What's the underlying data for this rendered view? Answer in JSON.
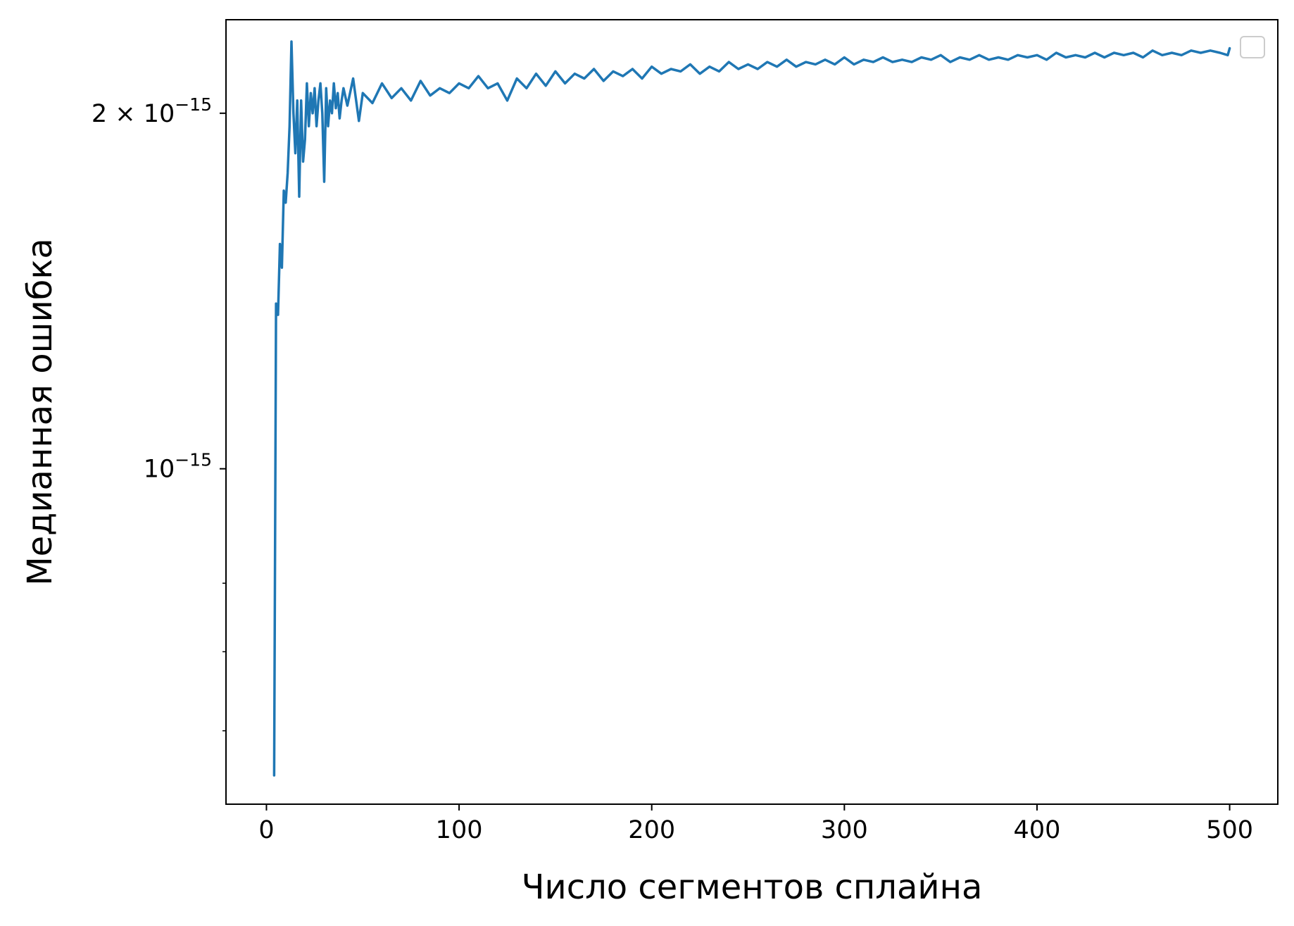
{
  "chart_data": {
    "type": "line",
    "title": "",
    "xlabel": "Число сегментов сплайна",
    "ylabel": "Медианная ошибка",
    "xlim": [
      -21,
      525
    ],
    "ylim": [
      5.2e-16,
      2.4e-15
    ],
    "yscale": "log",
    "grid": false,
    "legend": {
      "visible": true,
      "placement": "upper right",
      "entries": []
    },
    "x_ticks": [
      {
        "value": 0,
        "label": "0"
      },
      {
        "value": 100,
        "label": "100"
      },
      {
        "value": 200,
        "label": "200"
      },
      {
        "value": 300,
        "label": "300"
      },
      {
        "value": 400,
        "label": "400"
      },
      {
        "value": 500,
        "label": "500"
      }
    ],
    "y_major_ticks": [
      {
        "value": 1e-15,
        "base": "10",
        "sup": "−15"
      },
      {
        "value": 2e-15,
        "base": "2 × 10",
        "sup": "−15"
      }
    ],
    "y_minor_ticks": [
      6e-16,
      7e-16,
      8e-16
    ],
    "line_color": "#1f77b4",
    "series": [
      {
        "x": [
          4,
          5,
          6,
          7,
          8,
          9,
          10,
          11,
          12,
          13,
          14,
          15,
          16,
          17,
          18,
          19,
          20,
          21,
          22,
          23,
          24,
          25,
          26,
          27,
          28,
          29,
          30,
          31,
          32,
          33,
          34,
          35,
          36,
          37,
          38,
          39,
          40,
          42,
          45,
          48,
          50,
          55,
          60,
          65,
          70,
          75,
          80,
          85,
          90,
          95,
          100,
          105,
          110,
          115,
          120,
          125,
          130,
          135,
          140,
          145,
          150,
          155,
          160,
          165,
          170,
          175,
          180,
          185,
          190,
          195,
          200,
          205,
          210,
          215,
          220,
          225,
          230,
          235,
          240,
          245,
          250,
          255,
          260,
          265,
          270,
          275,
          280,
          285,
          290,
          295,
          300,
          305,
          310,
          315,
          320,
          325,
          330,
          335,
          340,
          345,
          350,
          355,
          360,
          365,
          370,
          375,
          380,
          385,
          390,
          395,
          400,
          405,
          410,
          415,
          420,
          425,
          430,
          435,
          440,
          445,
          450,
          455,
          460,
          465,
          470,
          475,
          480,
          485,
          490,
          495,
          499,
          500
        ],
        "values": [
          5.5e-16,
          1.38e-15,
          1.35e-15,
          1.55e-15,
          1.48e-15,
          1.72e-15,
          1.68e-15,
          1.78e-15,
          1.95e-15,
          2.3e-15,
          2e-15,
          1.85e-15,
          2.05e-15,
          1.7e-15,
          2.05e-15,
          1.82e-15,
          1.9e-15,
          2.12e-15,
          1.95e-15,
          2.08e-15,
          2e-15,
          2.1e-15,
          1.95e-15,
          2.05e-15,
          2.12e-15,
          2e-15,
          1.75e-15,
          2.1e-15,
          1.95e-15,
          2.05e-15,
          2e-15,
          2.12e-15,
          2.02e-15,
          2.08e-15,
          1.98e-15,
          2.05e-15,
          2.1e-15,
          2.03e-15,
          2.14e-15,
          1.97e-15,
          2.08e-15,
          2.04e-15,
          2.12e-15,
          2.06e-15,
          2.1e-15,
          2.05e-15,
          2.13e-15,
          2.07e-15,
          2.1e-15,
          2.08e-15,
          2.12e-15,
          2.1e-15,
          2.15e-15,
          2.1e-15,
          2.12e-15,
          2.05e-15,
          2.14e-15,
          2.1e-15,
          2.16e-15,
          2.11e-15,
          2.17e-15,
          2.12e-15,
          2.16e-15,
          2.14e-15,
          2.18e-15,
          2.13e-15,
          2.17e-15,
          2.15e-15,
          2.18e-15,
          2.14e-15,
          2.19e-15,
          2.16e-15,
          2.18e-15,
          2.17e-15,
          2.2e-15,
          2.16e-15,
          2.19e-15,
          2.17e-15,
          2.21e-15,
          2.18e-15,
          2.2e-15,
          2.18e-15,
          2.21e-15,
          2.19e-15,
          2.22e-15,
          2.19e-15,
          2.21e-15,
          2.2e-15,
          2.22e-15,
          2.2e-15,
          2.23e-15,
          2.2e-15,
          2.22e-15,
          2.21e-15,
          2.23e-15,
          2.21e-15,
          2.22e-15,
          2.21e-15,
          2.23e-15,
          2.22e-15,
          2.24e-15,
          2.21e-15,
          2.23e-15,
          2.22e-15,
          2.24e-15,
          2.22e-15,
          2.23e-15,
          2.22e-15,
          2.24e-15,
          2.23e-15,
          2.24e-15,
          2.22e-15,
          2.25e-15,
          2.23e-15,
          2.24e-15,
          2.23e-15,
          2.25e-15,
          2.23e-15,
          2.25e-15,
          2.24e-15,
          2.25e-15,
          2.23e-15,
          2.26e-15,
          2.24e-15,
          2.25e-15,
          2.24e-15,
          2.26e-15,
          2.25e-15,
          2.26e-15,
          2.25e-15,
          2.24e-15,
          2.27e-15
        ]
      }
    ]
  }
}
